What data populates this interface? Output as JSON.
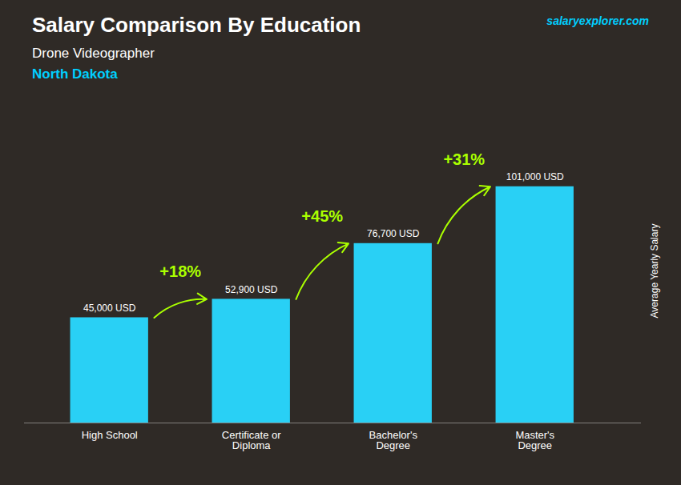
{
  "chart_data": {
    "type": "bar",
    "title": "Salary Comparison By Education",
    "subtitle": [
      "Drone Videographer",
      "North Dakota"
    ],
    "watermark": "salaryexplorer.com",
    "ylabel": "Average Yearly Salary",
    "categories": [
      "High School",
      "Certificate or\nDiploma",
      "Bachelor's\nDegree",
      "Master's\nDegree"
    ],
    "values": [
      45000,
      52900,
      76700,
      101000
    ],
    "value_labels": [
      "45,000 USD",
      "52,900 USD",
      "76,700 USD",
      "101,000 USD"
    ],
    "data_labels": true,
    "annotations": [
      "+18%",
      "+45%",
      "+31%"
    ],
    "color": "#29d0f5",
    "ylim": [
      0,
      130000
    ],
    "tick_labels": "x"
  }
}
